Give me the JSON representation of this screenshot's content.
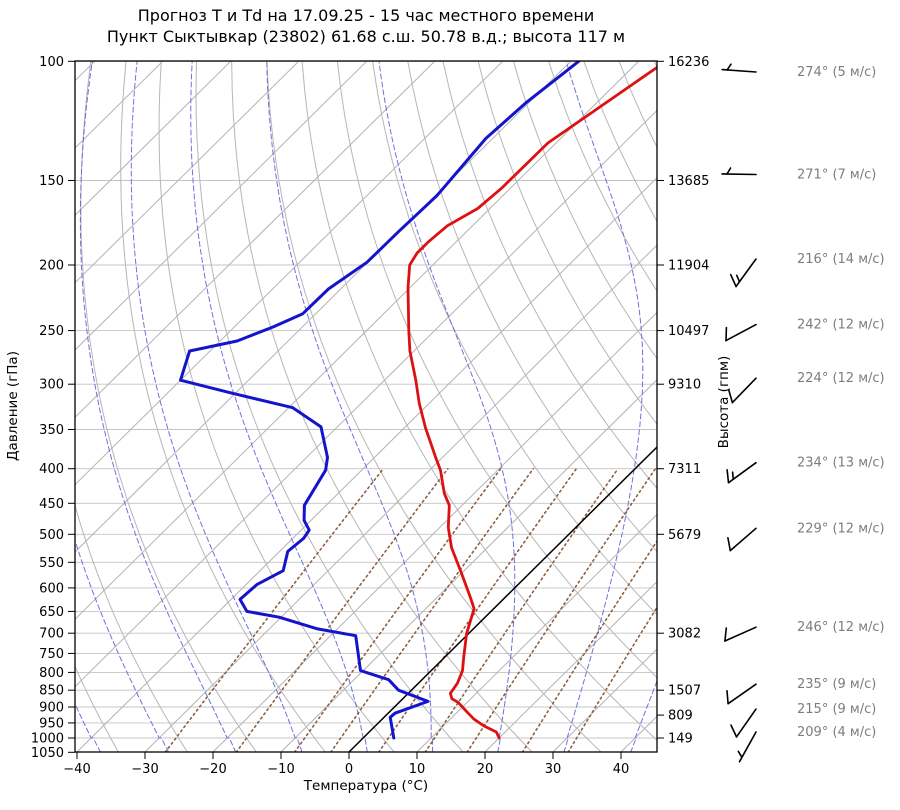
{
  "chart_data": {
    "type": "line",
    "chart_kind": "skew-t-log-p-sounding",
    "title": "Прогноз Т и Td на 17.09.25 - 15 час местного времени",
    "subtitle": "Пункт Сыктывкар (23802) 61.68 с.ш. 50.78 в.д.; высота 117 м",
    "xlabel": "Температура (°C)",
    "ylabel_left": "Давление (гПа)",
    "ylabel_right": "Высота (гпм)",
    "x_ticks": [
      -40,
      -30,
      -20,
      -10,
      0,
      10,
      20,
      30,
      40
    ],
    "pressure_ticks": [
      100,
      150,
      200,
      250,
      300,
      350,
      400,
      450,
      500,
      550,
      600,
      650,
      700,
      750,
      800,
      850,
      900,
      950,
      1000,
      1050
    ],
    "p_range": [
      100,
      1050
    ],
    "t_range_at_surface": [
      -40.3,
      45.3
    ],
    "skew_deg": 45,
    "grid": true,
    "height_labels": [
      {
        "p": 100,
        "label": "16236"
      },
      {
        "p": 150,
        "label": "13685"
      },
      {
        "p": 200,
        "label": "11904"
      },
      {
        "p": 250,
        "label": "10497"
      },
      {
        "p": 300,
        "label": "9310"
      },
      {
        "p": 400,
        "label": "7311"
      },
      {
        "p": 500,
        "label": "5679"
      },
      {
        "p": 700,
        "label": "3082"
      },
      {
        "p": 850,
        "label": "1507"
      },
      {
        "p": 925,
        "label": "809"
      },
      {
        "p": 1000,
        "label": "149"
      }
    ],
    "series": [
      {
        "name": "temperature",
        "color": "#dd1111",
        "width": 2.8,
        "points": [
          [
            100,
            -56.0
          ],
          [
            132,
            -61.2
          ],
          [
            154,
            -61.3
          ],
          [
            165,
            -61.8
          ],
          [
            175,
            -63.7
          ],
          [
            185,
            -64.1
          ],
          [
            192,
            -64.1
          ],
          [
            200,
            -63.4
          ],
          [
            216,
            -60.3
          ],
          [
            250,
            -53.8
          ],
          [
            268,
            -50.6
          ],
          [
            296,
            -45.4
          ],
          [
            320,
            -41.5
          ],
          [
            348,
            -36.9
          ],
          [
            385,
            -31.0
          ],
          [
            402,
            -28.4
          ],
          [
            435,
            -24.4
          ],
          [
            453,
            -21.9
          ],
          [
            489,
            -18.7
          ],
          [
            523,
            -15.3
          ],
          [
            571,
            -10.0
          ],
          [
            620,
            -5.1
          ],
          [
            644,
            -2.9
          ],
          [
            701,
            -0.3
          ],
          [
            760,
            2.8
          ],
          [
            795,
            4.6
          ],
          [
            829,
            5.7
          ],
          [
            859,
            6.2
          ],
          [
            875,
            7.2
          ],
          [
            886,
            8.7
          ],
          [
            913,
            11.2
          ],
          [
            938,
            13.5
          ],
          [
            960,
            16.0
          ],
          [
            980,
            18.7
          ],
          [
            1000,
            20.0
          ]
        ]
      },
      {
        "name": "dewpoint",
        "color": "#1414cc",
        "width": 3.0,
        "points": [
          [
            100,
            -68.8
          ],
          [
            115,
            -70.4
          ],
          [
            130,
            -71.0
          ],
          [
            158,
            -69.7
          ],
          [
            178,
            -70.0
          ],
          [
            198,
            -70.1
          ],
          [
            217,
            -71.8
          ],
          [
            236,
            -71.9
          ],
          [
            247,
            -74.3
          ],
          [
            259,
            -77.5
          ],
          [
            268,
            -83.0
          ],
          [
            296,
            -80.0
          ],
          [
            309,
            -70.7
          ],
          [
            325,
            -59.4
          ],
          [
            347,
            -52.4
          ],
          [
            385,
            -46.9
          ],
          [
            402,
            -45.3
          ],
          [
            453,
            -43.2
          ],
          [
            477,
            -41.0
          ],
          [
            493,
            -38.8
          ],
          [
            507,
            -38.4
          ],
          [
            530,
            -38.8
          ],
          [
            566,
            -36.6
          ],
          [
            593,
            -38.4
          ],
          [
            624,
            -38.7
          ],
          [
            650,
            -35.9
          ],
          [
            663,
            -30.3
          ],
          [
            690,
            -22.9
          ],
          [
            706,
            -16.3
          ],
          [
            795,
            -10.4
          ],
          [
            820,
            -4.9
          ],
          [
            850,
            -1.9
          ],
          [
            883,
            4.1
          ],
          [
            919,
            1.0
          ],
          [
            932,
            0.9
          ],
          [
            973,
            3.1
          ],
          [
            1000,
            4.5
          ]
        ]
      }
    ],
    "background": {
      "isotherms": {
        "min": -140,
        "max": 40,
        "step": 10,
        "color": "#b3b3b3",
        "highlight_value": 0,
        "highlight_color": "#000000"
      },
      "dry_adiabats": {
        "theta_start_K": 236,
        "theta_end_K": 516,
        "step_K": 10,
        "color": "#b6b6b6"
      },
      "moist_adiabats": {
        "start_temps_C": [
          -40,
          -30,
          -20,
          -10,
          0,
          10,
          20,
          30,
          40
        ],
        "color": "#7070dd"
      },
      "mixing_ratios": {
        "values_gkg": [
          0.4,
          1,
          2,
          3,
          5,
          8,
          12,
          20,
          30
        ],
        "p_top": 400,
        "color": "#8d5f43"
      },
      "pressure_line_color": "#c4c4c4"
    }
  },
  "winds": {
    "unit": "м/с",
    "levels": [
      {
        "p": 100,
        "dir": 274,
        "speed": 5,
        "label": "274° (5 м/с)"
      },
      {
        "p": 150,
        "dir": 271,
        "speed": 7,
        "label": "271° (7 м/с)"
      },
      {
        "p": 200,
        "dir": 216,
        "speed": 14,
        "label": "216° (14 м/с)"
      },
      {
        "p": 250,
        "dir": 242,
        "speed": 12,
        "label": "242° (12 м/с)"
      },
      {
        "p": 300,
        "dir": 224,
        "speed": 12,
        "label": "224° (12 м/с)"
      },
      {
        "p": 400,
        "dir": 234,
        "speed": 13,
        "label": "234° (13 м/с)"
      },
      {
        "p": 500,
        "dir": 229,
        "speed": 12,
        "label": "229° (12 м/с)"
      },
      {
        "p": 700,
        "dir": 246,
        "speed": 12,
        "label": "246° (12 м/с)"
      },
      {
        "p": 850,
        "dir": 235,
        "speed": 9,
        "label": "235° (9 м/с)"
      },
      {
        "p": 925,
        "dir": 215,
        "speed": 9,
        "label": "215° (9 м/с)"
      },
      {
        "p": 1000,
        "dir": 209,
        "speed": 4,
        "label": "209° (4 м/с)"
      }
    ]
  }
}
